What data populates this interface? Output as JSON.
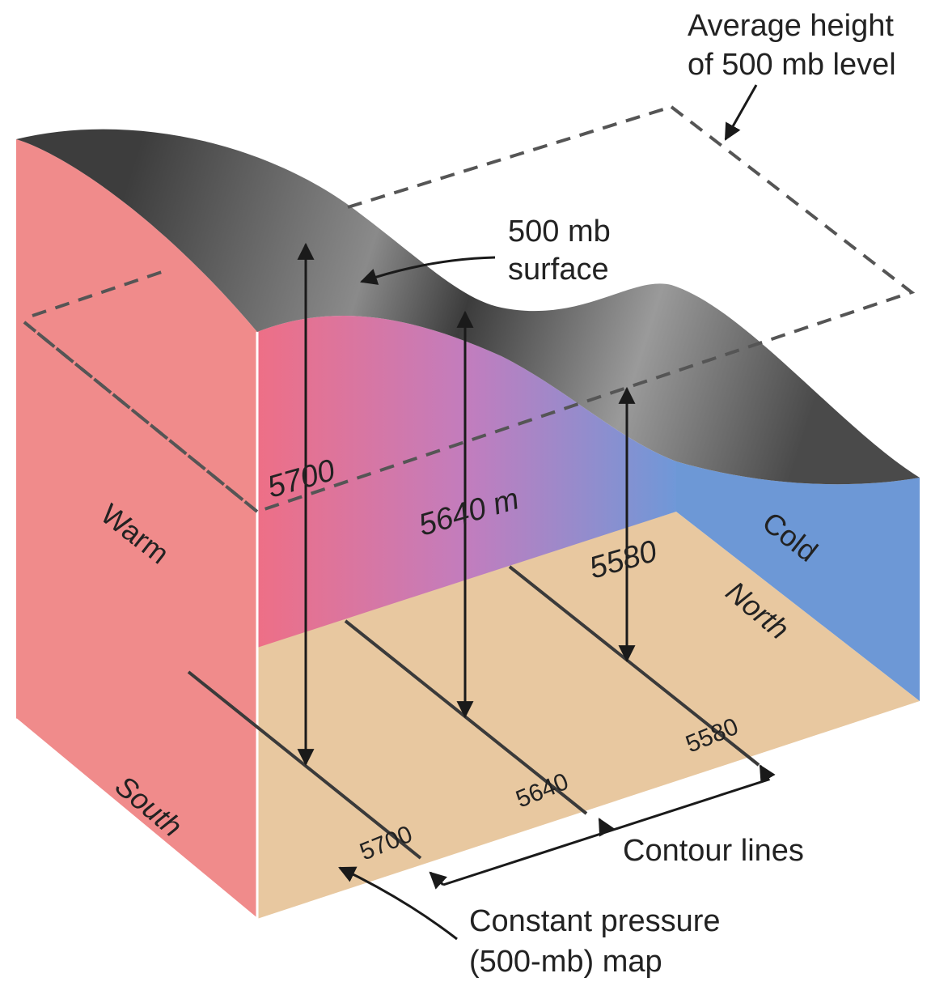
{
  "annotations": {
    "average_height": [
      "Average height",
      "of 500 mb level"
    ],
    "surface": [
      "500 mb",
      "surface"
    ],
    "contour_lines": "Contour lines",
    "map": [
      "Constant pressure",
      "(500-mb) map"
    ]
  },
  "walls": {
    "warm": "Warm",
    "cold": "Cold"
  },
  "directions": {
    "south": "South",
    "north": "North"
  },
  "heights": {
    "h5700": "5700",
    "h5640": "5640 m",
    "h5580": "5580"
  },
  "contours": {
    "c5700": "5700",
    "c5640": "5640",
    "c5580": "5580"
  },
  "colors": {
    "warm": "#f08b8b",
    "cold": "#6d98d6",
    "floor": "#e8c8a0",
    "surface_dark": "#3a3a3a",
    "surface_light": "#8a8a8a"
  }
}
